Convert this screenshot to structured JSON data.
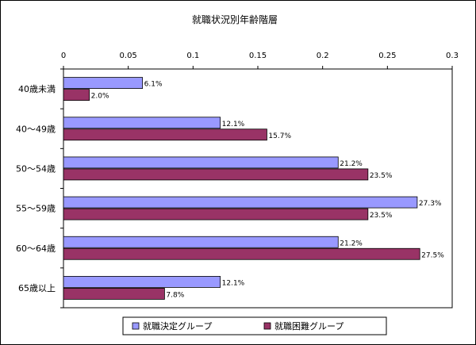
{
  "chart_data": {
    "type": "bar",
    "orientation": "horizontal",
    "title": "就職状況別年齢階層",
    "xlabel": "",
    "ylabel": "",
    "xlim": [
      0,
      0.3
    ],
    "ticks": [
      "0",
      "0.05",
      "0.1",
      "0.15",
      "0.2",
      "0.25",
      "0.3"
    ],
    "categories": [
      "40歳未満",
      "40～49歳",
      "50～54歳",
      "55～59歳",
      "60～64歳",
      "65歳以上"
    ],
    "series": [
      {
        "name": "就職決定グループ",
        "color": "#9999ff",
        "values": [
          0.061,
          0.121,
          0.212,
          0.273,
          0.212,
          0.121
        ],
        "labels": [
          "6.1%",
          "12.1%",
          "21.2%",
          "27.3%",
          "21.2%",
          "12.1%"
        ]
      },
      {
        "name": "就職困難グループ",
        "color": "#993366",
        "values": [
          0.02,
          0.157,
          0.235,
          0.235,
          0.275,
          0.078
        ],
        "labels": [
          "2.0%",
          "15.7%",
          "23.5%",
          "23.5%",
          "27.5%",
          "7.8%"
        ]
      }
    ],
    "grid": false,
    "legend": "bottom"
  }
}
